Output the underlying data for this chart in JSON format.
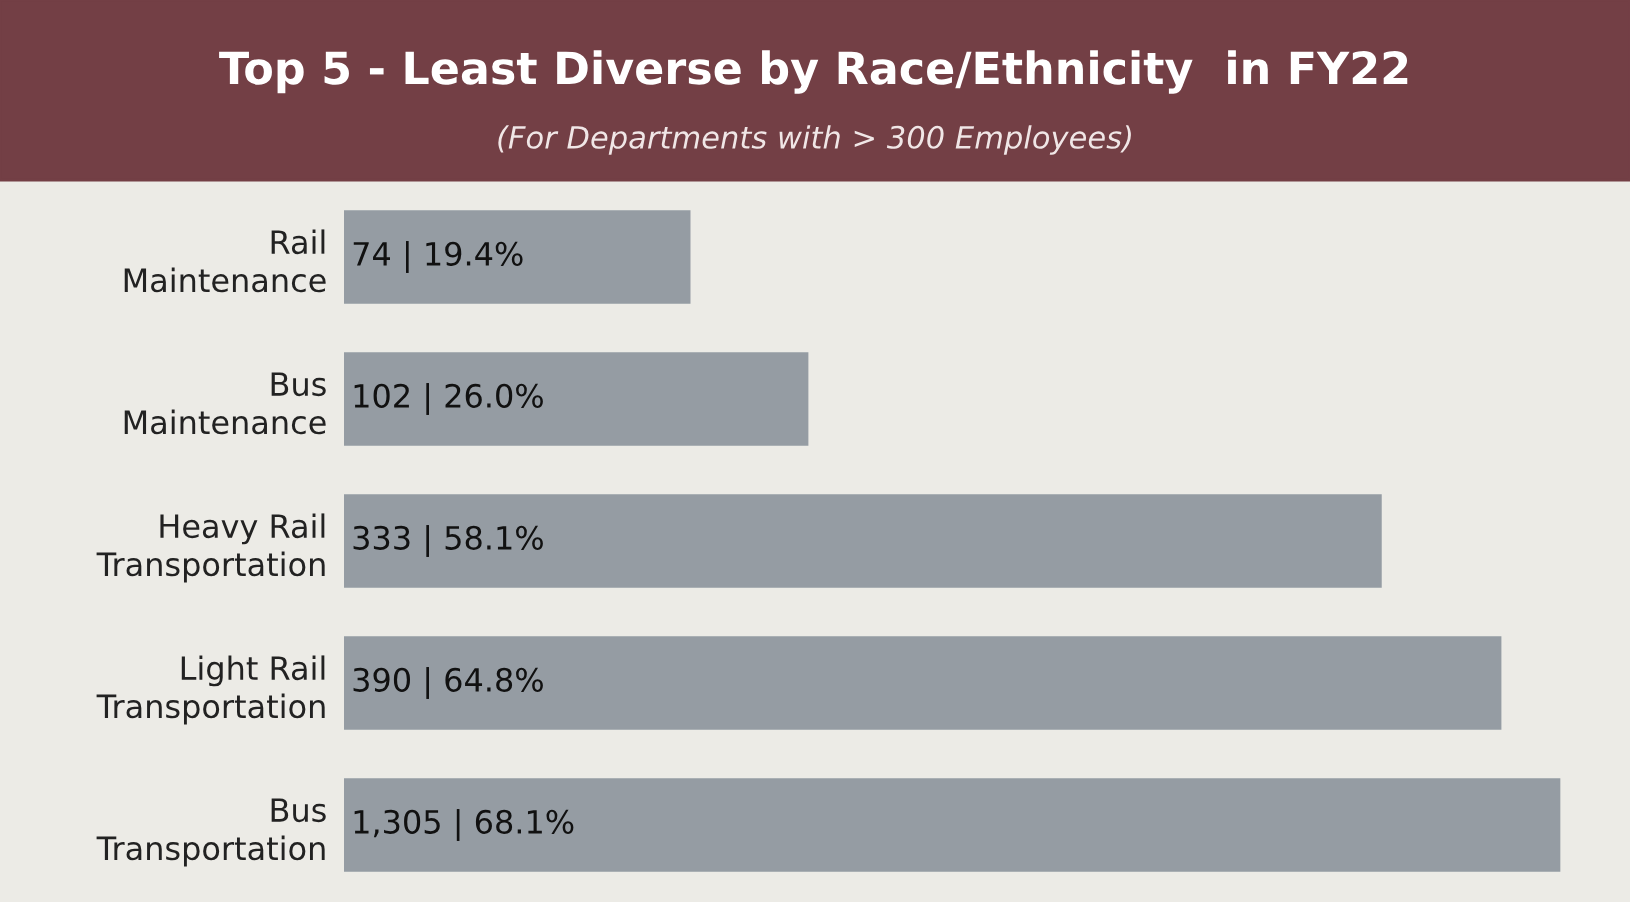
{
  "chart_data": {
    "type": "bar",
    "orientation": "horizontal",
    "title": "Top 5 - Least Diverse by Race/Ethnicity  in FY22",
    "subtitle": "(For Departments with > 300 Employees)",
    "categories": [
      "Rail\nMaintenance",
      "Bus\nMaintenance",
      "Heavy Rail\nTransportation",
      "Light Rail\nTransportation",
      "Bus\nTransportation"
    ],
    "values": [
      19.4,
      26.0,
      58.1,
      64.8,
      68.1
    ],
    "value_labels": [
      "74 | 19.4%",
      "102 | 26.0%",
      "333 | 58.1%",
      "390 | 64.8%",
      "1,305 | 68.1%"
    ],
    "color": "#959ca3",
    "xlim": [
      0,
      72
    ]
  }
}
